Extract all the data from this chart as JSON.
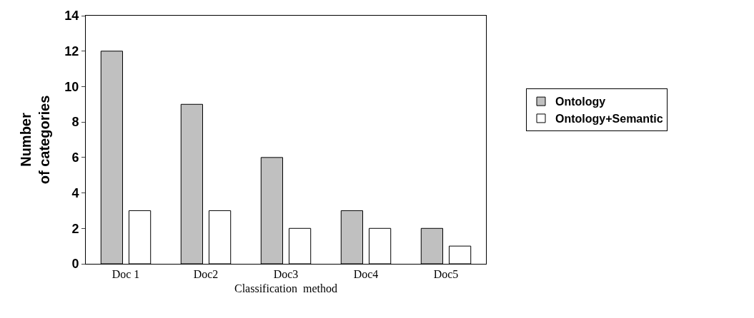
{
  "chart_data": {
    "type": "bar",
    "xlabel": "Classification  method",
    "ylabel": "Number\nof categories",
    "categories": [
      "Doc 1",
      "Doc2",
      "Doc3",
      "Doc4",
      "Doc5"
    ],
    "series": [
      {
        "name": "Ontology",
        "color": "#c0c0c0",
        "values": [
          12,
          9,
          6,
          3,
          2
        ]
      },
      {
        "name": "Ontology+Semantic",
        "color": "#ffffff",
        "values": [
          3,
          3,
          2,
          2,
          1
        ]
      }
    ],
    "ylim": [
      0,
      14
    ],
    "yticks": [
      0,
      2,
      4,
      6,
      8,
      10,
      12,
      14
    ],
    "legend": "right"
  }
}
